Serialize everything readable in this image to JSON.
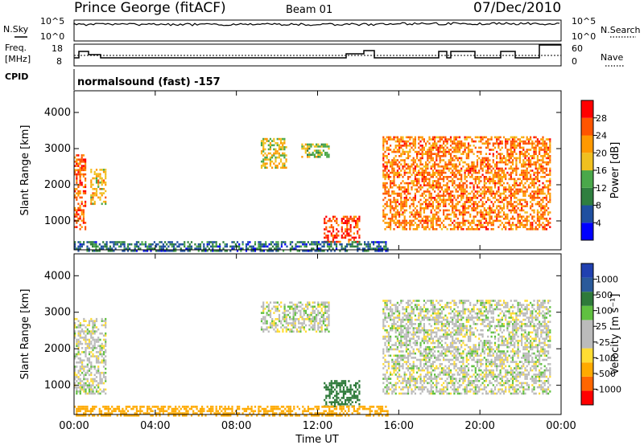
{
  "header": {
    "station": "Prince George (fitACF)",
    "beam": "Beam 01",
    "date": "07/Dec/2010"
  },
  "top_panels": {
    "nsky_label": "N.Sky",
    "nsearch_label": "N.Search",
    "left_ticks": [
      "10^5",
      "10^0"
    ],
    "right_ticks": [
      "10^5",
      "10^0"
    ],
    "freq_label_1": "Freq.",
    "freq_label_2": "[MHz]",
    "freq_ticks": [
      "18",
      "8"
    ],
    "nave_label": "Nave",
    "nave_ticks": [
      "60",
      "0"
    ],
    "cpid_label": "CPID",
    "cpid_text": "normalsound (fast) -157"
  },
  "colors": {
    "power_scale": [
      "#0000ff",
      "#1f4fa0",
      "#2f7f3f",
      "#4aa84a",
      "#f0c020",
      "#ff9900",
      "#ff5500",
      "#ff0000"
    ],
    "velocity_scale": [
      "#2040b0",
      "#2a5a9a",
      "#2e7a3a",
      "#60c040",
      "#bbbbbb",
      "#bbbbbb",
      "#ffdd33",
      "#ffaa00",
      "#ff6600",
      "#ff0000"
    ]
  },
  "chart_data": [
    {
      "type": "heatmap",
      "title": "Power",
      "xlabel": "",
      "ylabel": "Slant Range [km]",
      "x_ticks": [
        "00:00",
        "04:00",
        "08:00",
        "12:00",
        "16:00",
        "20:00",
        "00:00"
      ],
      "y_ticks": [
        1000,
        2000,
        3000,
        4000
      ],
      "ylim": [
        200,
        4600
      ],
      "colorbar_label": "Power [dB]",
      "colorbar_ticks": [
        4,
        8,
        12,
        16,
        20,
        24,
        28
      ],
      "echo_regions_hours_km": [
        {
          "t0": 0.0,
          "t1": 0.6,
          "r0": 800,
          "r1": 2900,
          "level": 26
        },
        {
          "t0": 0.8,
          "t1": 1.6,
          "r0": 1500,
          "r1": 2500,
          "level": 20
        },
        {
          "t0": 9.2,
          "t1": 10.5,
          "r0": 2500,
          "r1": 3350,
          "level": 18
        },
        {
          "t0": 11.2,
          "t1": 12.6,
          "r0": 2800,
          "r1": 3200,
          "level": 16
        },
        {
          "t0": 12.3,
          "t1": 14.1,
          "r0": 450,
          "r1": 1200,
          "level": 27
        },
        {
          "t0": 15.2,
          "t1": 23.5,
          "r0": 800,
          "r1": 3400,
          "level": 24
        },
        {
          "t0": 0.0,
          "t1": 15.5,
          "r0": 200,
          "r1": 500,
          "level": 8
        }
      ]
    },
    {
      "type": "heatmap",
      "title": "Velocity",
      "xlabel": "Time UT",
      "ylabel": "Slant Range [km]",
      "x_ticks": [
        "00:00",
        "04:00",
        "08:00",
        "12:00",
        "16:00",
        "20:00",
        "00:00"
      ],
      "y_ticks": [
        1000,
        2000,
        3000,
        4000
      ],
      "ylim": [
        200,
        4600
      ],
      "colorbar_label": "Velocity [m s⁻¹]",
      "colorbar_ticks": [
        1000,
        500,
        100,
        25,
        -25,
        -100,
        -500,
        -1000
      ],
      "echo_regions_hours_km": [
        {
          "t0": 0.0,
          "t1": 1.6,
          "r0": 800,
          "r1": 2900,
          "level": 0
        },
        {
          "t0": 9.2,
          "t1": 12.6,
          "r0": 2500,
          "r1": 3350,
          "level": 0
        },
        {
          "t0": 12.3,
          "t1": 14.1,
          "r0": 450,
          "r1": 1200,
          "level": 300
        },
        {
          "t0": 15.2,
          "t1": 23.5,
          "r0": 800,
          "r1": 3400,
          "level": 0
        },
        {
          "t0": 0.0,
          "t1": 15.5,
          "r0": 200,
          "r1": 500,
          "level": -150
        }
      ]
    }
  ]
}
